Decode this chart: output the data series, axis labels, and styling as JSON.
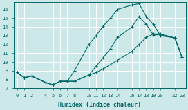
{
  "xlabel": "Humidex (Indice chaleur)",
  "bg_color": "#cce8e8",
  "grid_color": "#ffffff",
  "line_color": "#006666",
  "xlim": [
    -0.5,
    23.5
  ],
  "ylim": [
    7,
    16.8
  ],
  "xticks": [
    0,
    1,
    2,
    4,
    5,
    6,
    7,
    8,
    10,
    11,
    12,
    13,
    14,
    16,
    17,
    18,
    19,
    20,
    22,
    23
  ],
  "yticks": [
    7,
    8,
    9,
    10,
    11,
    12,
    13,
    14,
    15,
    16
  ],
  "line_upper_x": [
    0,
    1,
    2,
    4,
    5,
    6,
    7,
    8,
    10,
    11,
    12,
    13,
    14,
    16,
    17,
    18,
    19,
    20,
    22,
    23
  ],
  "line_upper_y": [
    8.8,
    8.2,
    8.4,
    7.65,
    7.4,
    7.8,
    7.8,
    9.0,
    12.0,
    13.0,
    14.1,
    15.0,
    16.0,
    16.5,
    16.65,
    15.2,
    14.3,
    13.0,
    12.75,
    10.55
  ],
  "line_mid_x": [
    0,
    1,
    2,
    4,
    5,
    6,
    7,
    8,
    10,
    11,
    12,
    13,
    14,
    16,
    17,
    18,
    19,
    20,
    22,
    23
  ],
  "line_mid_y": [
    8.8,
    8.2,
    8.4,
    7.65,
    7.4,
    7.8,
    7.8,
    7.8,
    8.5,
    9.5,
    10.5,
    11.5,
    12.8,
    14.0,
    15.2,
    14.3,
    13.1,
    13.1,
    12.75,
    10.55
  ],
  "line_low_x": [
    0,
    1,
    2,
    4,
    5,
    6,
    7,
    8,
    10,
    11,
    12,
    13,
    14,
    16,
    17,
    18,
    19,
    20,
    22,
    23
  ],
  "line_low_y": [
    8.8,
    8.2,
    8.4,
    7.65,
    7.4,
    7.8,
    7.8,
    7.8,
    8.5,
    8.8,
    9.2,
    9.7,
    10.2,
    11.2,
    12.0,
    12.8,
    13.2,
    13.2,
    12.75,
    10.55
  ]
}
